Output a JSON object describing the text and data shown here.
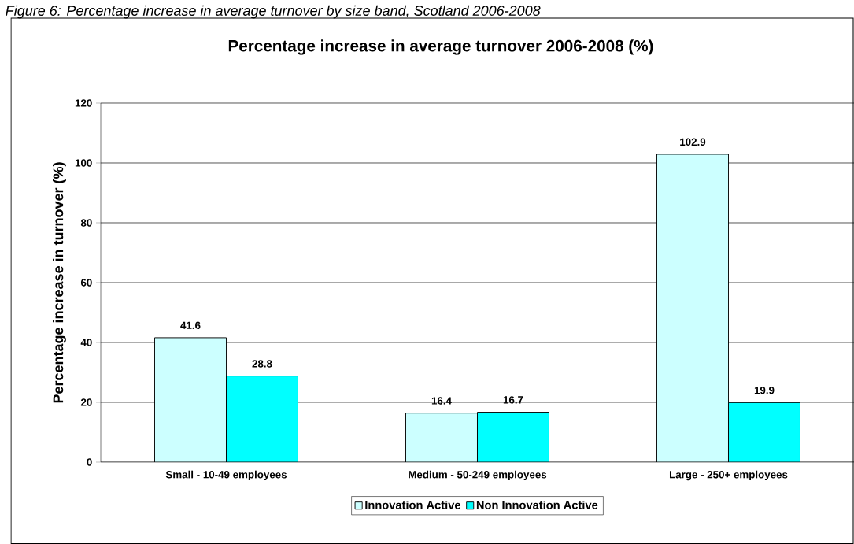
{
  "chart_data": {
    "type": "bar",
    "title": "Percentage increase in average turnover 2006-2008 (%)",
    "annotations": [
      "Figure 6: Percentage increase in average turnover by size band, Scotland 2006-2008"
    ],
    "ylabel": "Percentage increase in turnover (%)",
    "categories": [
      "Small - 10-49 employees",
      "Medium - 50-249 employees",
      "Large - 250+ employees"
    ],
    "series": [
      {
        "name": "Innovation Active",
        "color": "#ccffff",
        "values": [
          41.6,
          16.4,
          102.9
        ]
      },
      {
        "name": "Non Innovation Active",
        "color": "#00ffff",
        "values": [
          28.8,
          16.7,
          19.9
        ]
      }
    ],
    "ylim": [
      0,
      120
    ],
    "yticks": [
      0,
      20,
      40,
      60,
      80,
      100,
      120
    ],
    "grid": "y",
    "legend": "bottom",
    "data_labels": true
  }
}
